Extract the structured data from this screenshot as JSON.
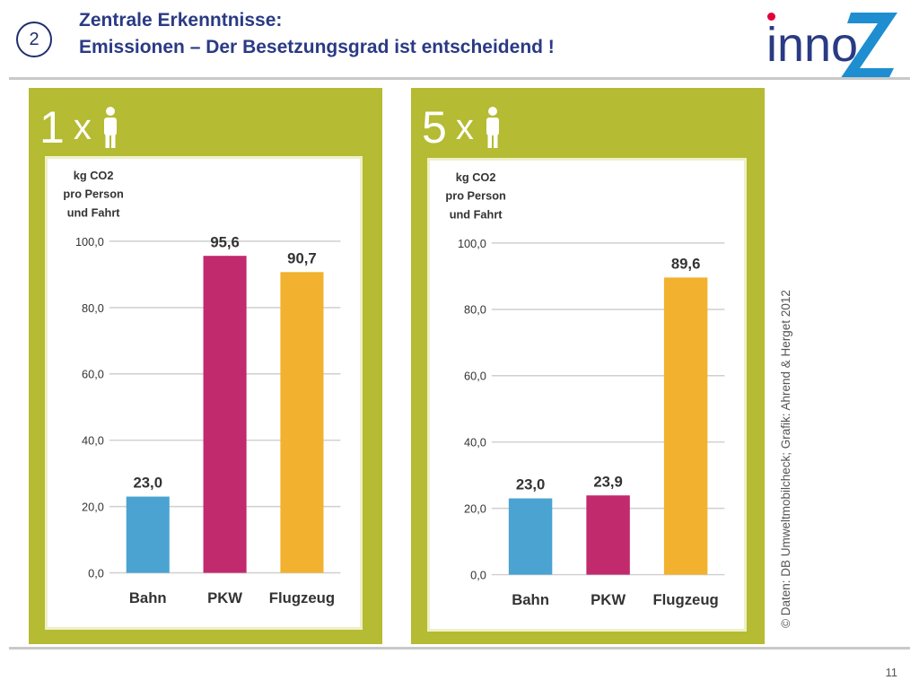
{
  "header": {
    "slide_badge": "2",
    "title_line1": "Zentrale Erkenntnisse:",
    "title_line2": "Emissionen – Der Besetzungsgrad ist entscheidend !"
  },
  "logo": {
    "text": "inno",
    "colors": {
      "blue": "#2a3a84",
      "red": "#e2003a",
      "light_blue": "#1e8ed0"
    }
  },
  "panels": [
    {
      "multiplier": "1",
      "times": "x"
    },
    {
      "multiplier": "5",
      "times": "x"
    }
  ],
  "credit": "© Daten: DB Umweltmobilcheck; Grafik: Ahrend & Herget 2012",
  "page_number": "11",
  "colors": {
    "panel_bg": "#b5bb32",
    "bahn": "#4aa3d1",
    "pkw": "#c12a6d",
    "flugzeug": "#f2b12e"
  },
  "chart_data": [
    {
      "type": "bar",
      "ylabel": [
        "kg CO2",
        "pro Person",
        "und Fahrt"
      ],
      "categories": [
        "Bahn",
        "PKW",
        "Flugzeug"
      ],
      "values": [
        23.0,
        95.6,
        90.7
      ],
      "value_labels": [
        "23,0",
        "95,6",
        "90,7"
      ],
      "yticks": [
        "0,0",
        "20,0",
        "40,0",
        "60,0",
        "80,0",
        "100,0"
      ],
      "ylim": [
        0,
        100
      ],
      "grid": true,
      "bar_colors": [
        "#4aa3d1",
        "#c12a6d",
        "#f2b12e"
      ]
    },
    {
      "type": "bar",
      "ylabel": [
        "kg CO2",
        "pro Person",
        "und Fahrt"
      ],
      "categories": [
        "Bahn",
        "PKW",
        "Flugzeug"
      ],
      "values": [
        23.0,
        23.9,
        89.6
      ],
      "value_labels": [
        "23,0",
        "23,9",
        "89,6"
      ],
      "yticks": [
        "0,0",
        "20,0",
        "40,0",
        "60,0",
        "80,0",
        "100,0"
      ],
      "ylim": [
        0,
        100
      ],
      "grid": true,
      "bar_colors": [
        "#4aa3d1",
        "#c12a6d",
        "#f2b12e"
      ]
    }
  ]
}
